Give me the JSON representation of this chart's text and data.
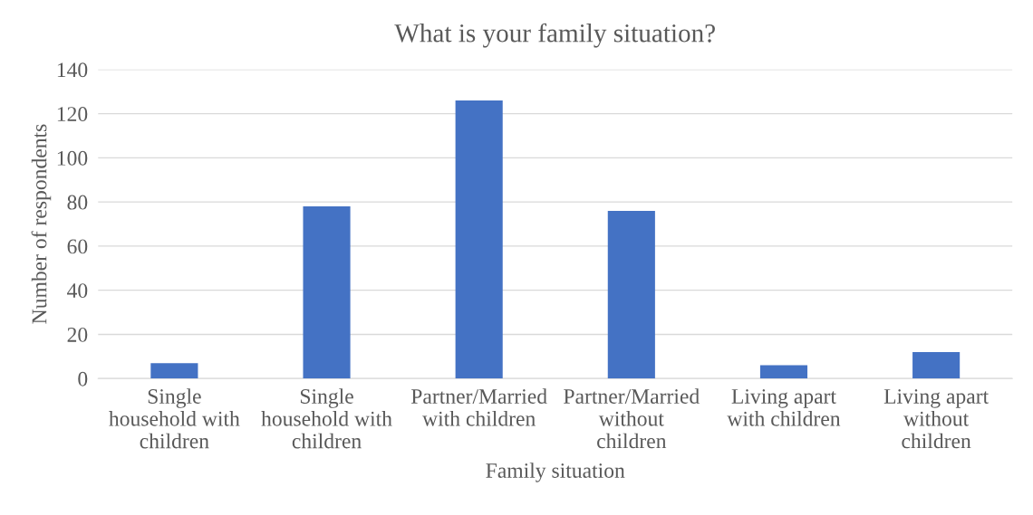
{
  "chart_data": {
    "type": "bar",
    "title": "What is your family situation?",
    "xlabel": "Family situation",
    "ylabel": "Number of respondents",
    "categories": [
      "Single household with children",
      "Single household with children",
      "Partner/Married with children",
      "Partner/Married without children",
      "Living apart with children",
      "Living apart without children"
    ],
    "values": [
      7,
      78,
      126,
      76,
      6,
      12
    ],
    "color": "#4472c4",
    "ylim": [
      0,
      140
    ],
    "yticks": [
      0,
      20,
      40,
      60,
      80,
      100,
      120,
      140
    ],
    "grid": "y",
    "legend": false
  }
}
